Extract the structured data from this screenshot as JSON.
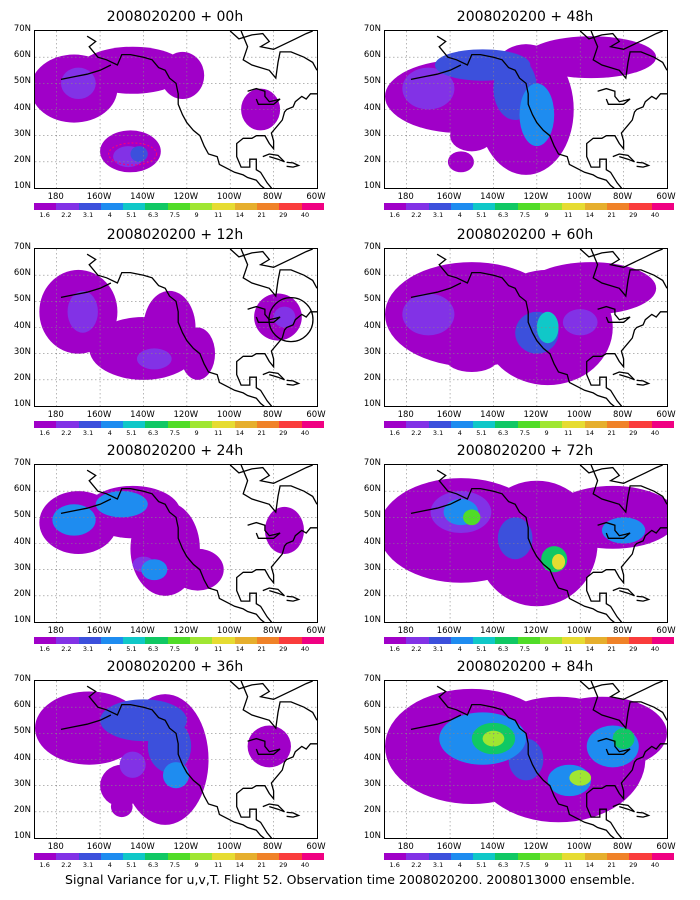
{
  "caption": "Signal Variance for u,v,T. Flight 52. Observation time 2008020200. 2008013000 ensemble.",
  "lat_labels": [
    "70N",
    "60N",
    "50N",
    "40N",
    "30N",
    "20N",
    "10N"
  ],
  "lon_labels": [
    "180",
    "160W",
    "140W",
    "120W",
    "100W",
    "80W",
    "60W"
  ],
  "colorbar": {
    "colors": [
      "#a000c8",
      "#8232e6",
      "#3c50dc",
      "#1e8cf0",
      "#10c8c8",
      "#10c864",
      "#50dc28",
      "#a0e632",
      "#e6dc32",
      "#e6af2d",
      "#f08228",
      "#fa3c3c",
      "#f00082"
    ],
    "labels": [
      "1.6",
      "2.2",
      "3.1",
      "4",
      "5.1",
      "6.3",
      "7.5",
      "9",
      "11",
      "14",
      "21",
      "29",
      "40"
    ]
  },
  "panels": [
    {
      "title": "2008020200 + 00h"
    },
    {
      "title": "2008020200 + 48h"
    },
    {
      "title": "2008020200 + 12h"
    },
    {
      "title": "2008020200 + 60h"
    },
    {
      "title": "2008020200 + 24h"
    },
    {
      "title": "2008020200 + 72h"
    },
    {
      "title": "2008020200 + 36h"
    },
    {
      "title": "2008020200 + 84h"
    }
  ]
}
